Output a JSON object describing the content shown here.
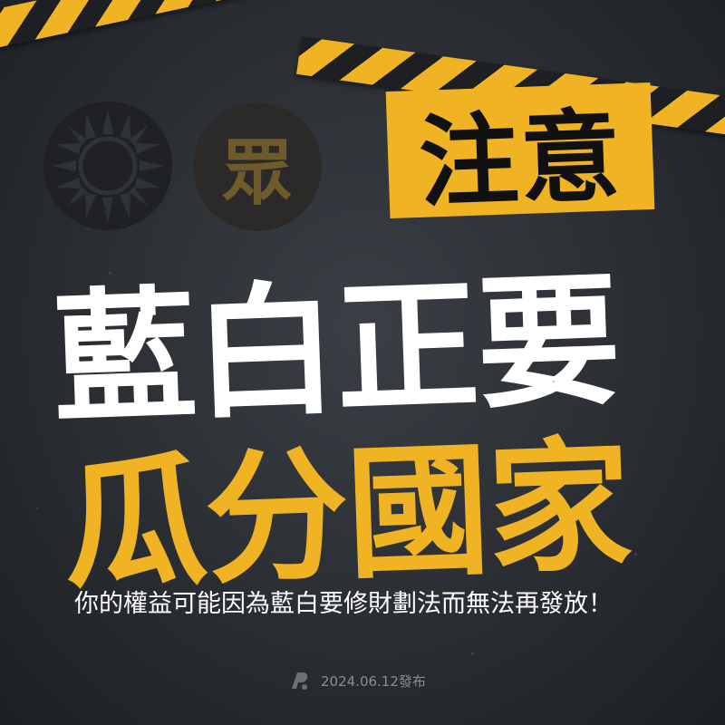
{
  "badge": {
    "text": "注意"
  },
  "headline": {
    "line1": "藍白正要",
    "line2": "瓜分國家"
  },
  "subtitle": "你的權益可能因為藍白要修財劃法而無法再發放！",
  "footer": {
    "date": "2024.06.12發布"
  },
  "logos": {
    "kmt_icon": "sun-emblem-icon",
    "tpp_char": "眾"
  },
  "colors": {
    "accent": "#f0b323",
    "background": "#2a2e33",
    "headline_white": "#ffffff"
  }
}
